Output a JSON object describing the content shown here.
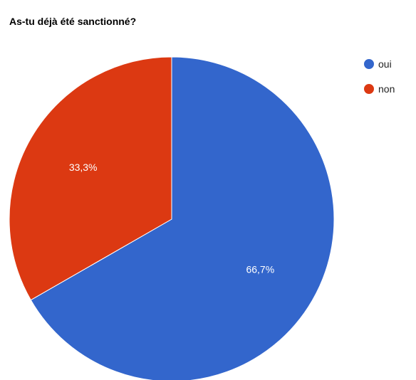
{
  "chart_data": {
    "type": "pie",
    "title": "As-tu déjà été sanctionné?",
    "categories": [
      "oui",
      "non"
    ],
    "values": [
      66.7,
      33.3
    ],
    "labels": [
      "66,7%",
      "33,3%"
    ],
    "colors": [
      "#3366cc",
      "#dc3912"
    ],
    "legend_position": "right"
  }
}
